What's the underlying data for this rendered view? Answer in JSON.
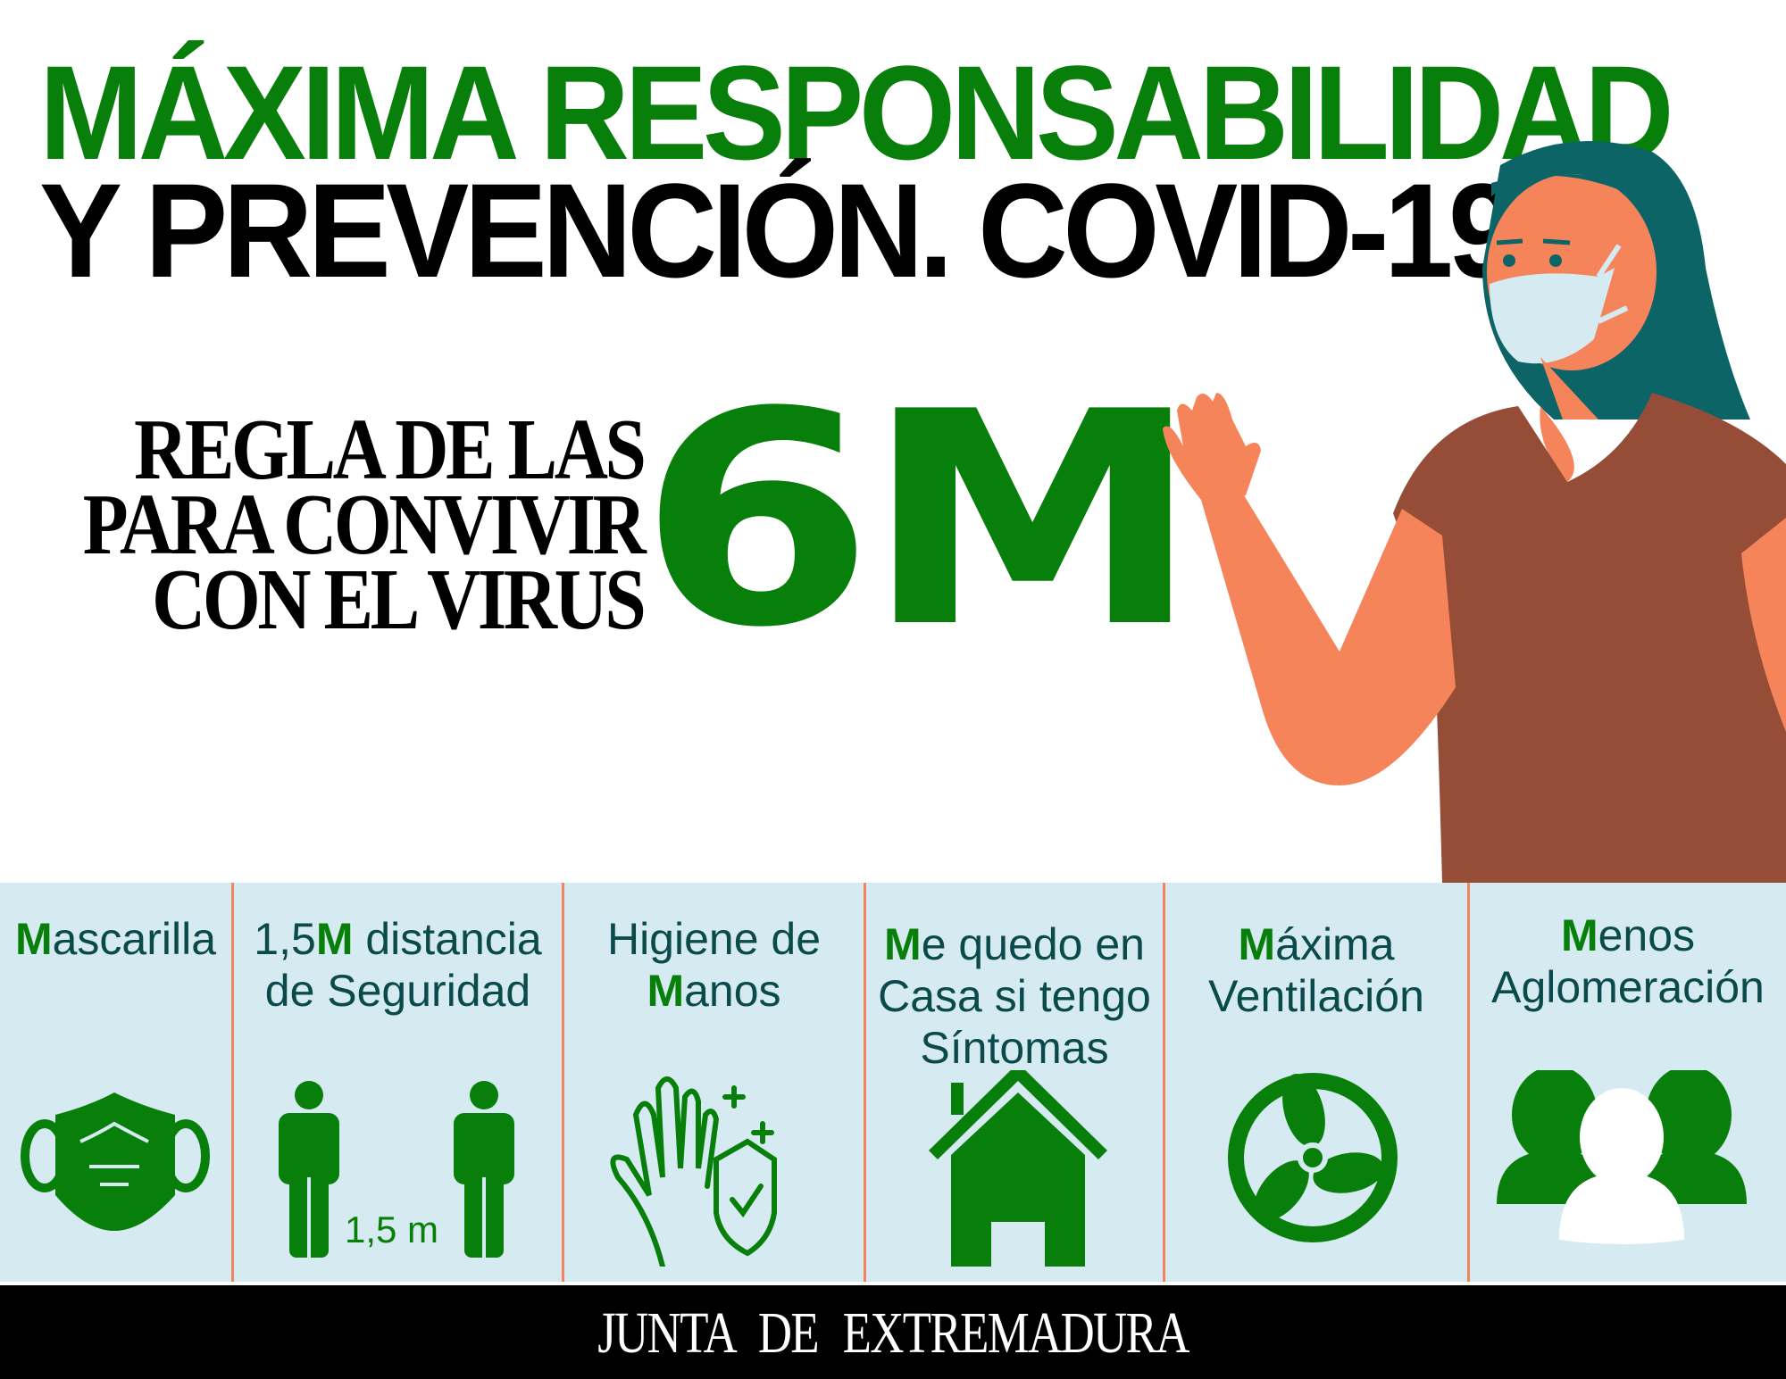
{
  "header": {
    "title_line1": "MÁXIMA RESPONSABILIDAD",
    "title_line2": "Y PREVENCIÓN. COVID-19"
  },
  "rule": {
    "line1": "REGLA DE LAS",
    "line2": "PARA CONVIVIR",
    "line3": "CON EL VIRUS",
    "big": "6M"
  },
  "panels": [
    {
      "highlight": "M",
      "text": "ascarilla",
      "icon": "face-mask-icon"
    },
    {
      "pre": "1,5",
      "highlight": "M",
      "text": " distancia",
      "line2": "de Seguridad",
      "icon": "social-distance-icon",
      "distance_label": "1,5 m"
    },
    {
      "line1": "Higiene de",
      "highlight": "M",
      "text": "anos",
      "icon": "hand-hygiene-icon"
    },
    {
      "highlight": "M",
      "text": "e quedo en",
      "line2": "Casa si tengo",
      "line3": "Síntomas",
      "icon": "house-icon"
    },
    {
      "highlight": "M",
      "text": "áxima",
      "line2": "Ventilación",
      "icon": "fan-icon"
    },
    {
      "highlight": "M",
      "text": "enos",
      "line2": "Aglomeración",
      "icon": "group-icon"
    }
  ],
  "footer": {
    "text": "JUNTA DE EXTREMADURA"
  },
  "colors": {
    "green": "#077f0a",
    "teal_text": "#0b4a4a",
    "panel_bg": "#d6eaf1",
    "divider": "#f4845f",
    "hair": "#0d6467",
    "skin": "#f5845a",
    "shirt": "#954d38"
  }
}
